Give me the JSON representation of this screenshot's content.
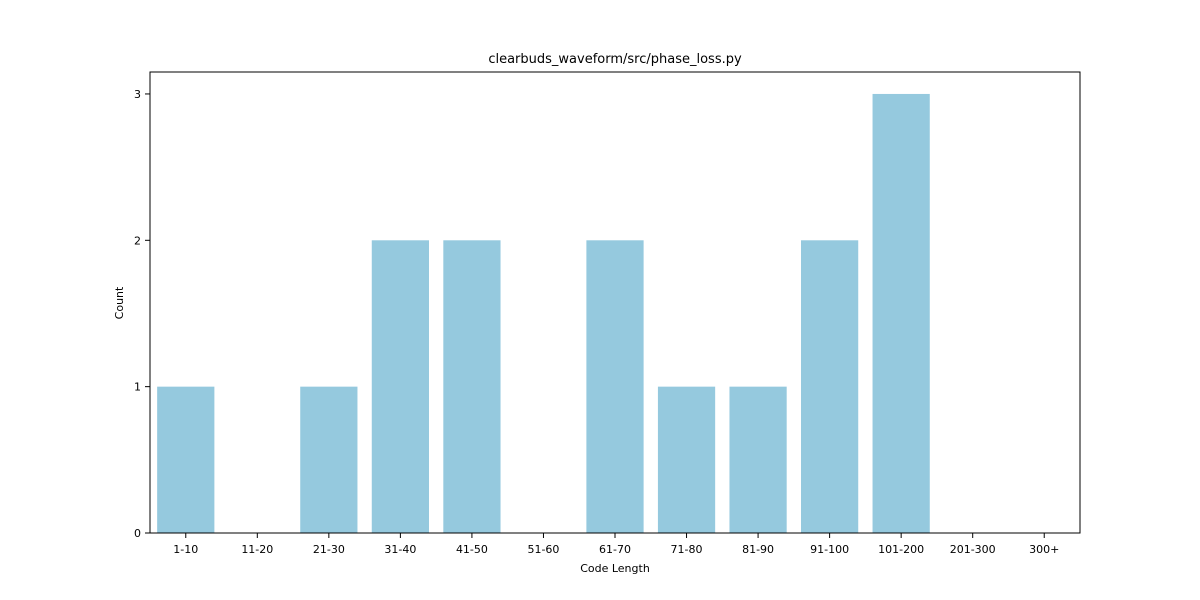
{
  "chart_data": {
    "type": "bar",
    "title": "clearbuds_waveform/src/phase_loss.py",
    "xlabel": "Code Length",
    "ylabel": "Count",
    "categories": [
      "1-10",
      "11-20",
      "21-30",
      "31-40",
      "41-50",
      "51-60",
      "61-70",
      "71-80",
      "81-90",
      "91-100",
      "101-200",
      "201-300",
      "300+"
    ],
    "values": [
      1,
      0,
      1,
      2,
      2,
      0,
      2,
      1,
      1,
      2,
      3,
      0,
      0
    ],
    "ylim": [
      0,
      3.15
    ],
    "yticks": [
      0,
      1,
      2,
      3
    ],
    "bar_color": "#95c9de",
    "grid": false,
    "legend": "none"
  }
}
